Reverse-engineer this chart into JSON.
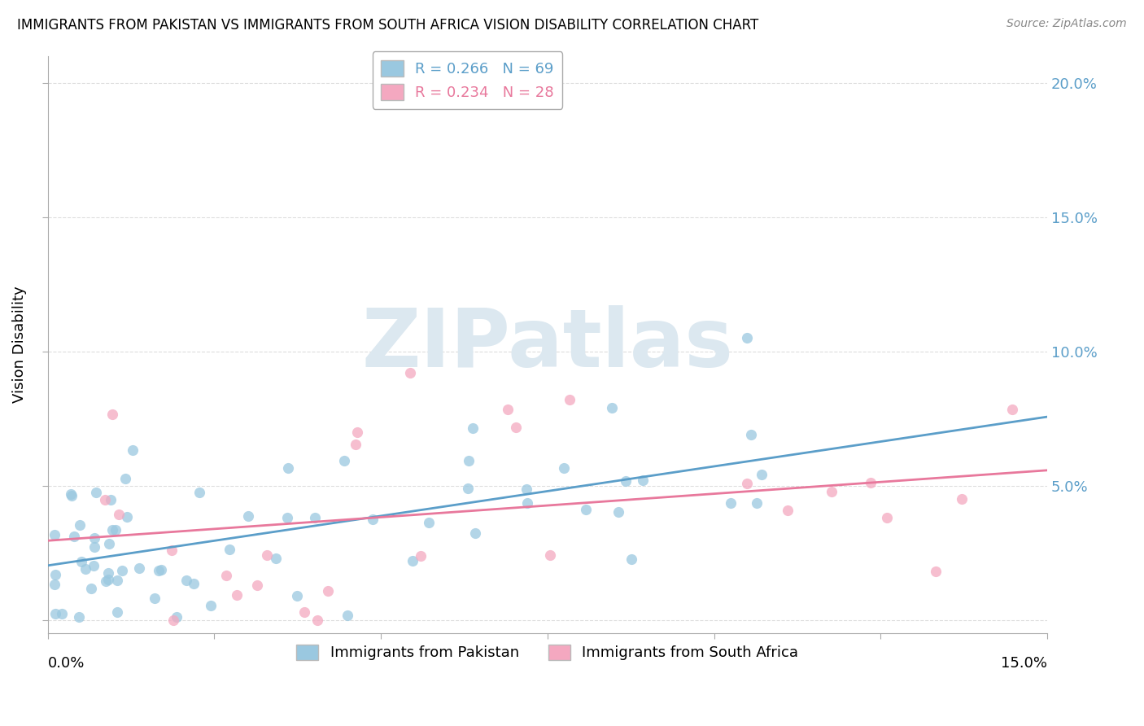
{
  "title": "IMMIGRANTS FROM PAKISTAN VS IMMIGRANTS FROM SOUTH AFRICA VISION DISABILITY CORRELATION CHART",
  "source": "Source: ZipAtlas.com",
  "ylabel": "Vision Disability",
  "xlim": [
    0.0,
    0.15
  ],
  "ylim": [
    -0.005,
    0.21
  ],
  "yticks": [
    0.0,
    0.05,
    0.1,
    0.15,
    0.2
  ],
  "ytick_labels_right": [
    "",
    "5.0%",
    "10.0%",
    "15.0%",
    "20.0%"
  ],
  "blue_scatter_color": "#9ac8e0",
  "pink_scatter_color": "#f4a8c0",
  "blue_line_color": "#5b9ec9",
  "pink_line_color": "#e8789c",
  "watermark": "ZIPatlas",
  "R_pak": 0.266,
  "N_pak": 69,
  "R_sa": 0.234,
  "N_sa": 28,
  "grid_color": "#dddddd",
  "title_fontsize": 12,
  "axis_label_fontsize": 13,
  "tick_label_fontsize": 13,
  "legend_fontsize": 13
}
